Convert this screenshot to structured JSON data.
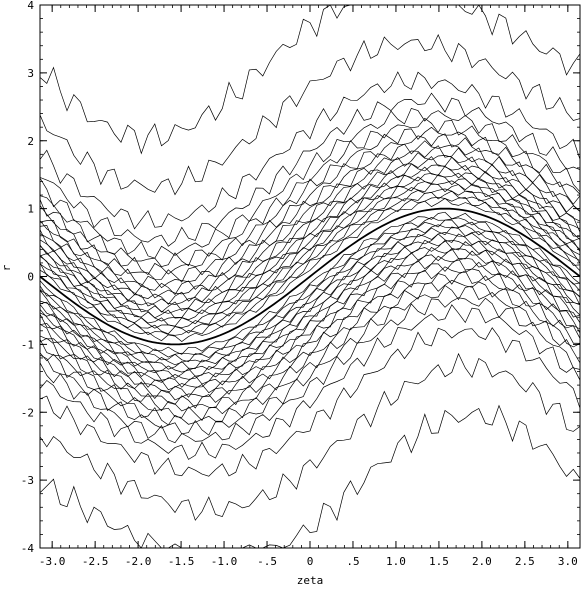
{
  "chart_data": {
    "type": "contour",
    "title": "",
    "xlabel": "zeta",
    "ylabel": "r",
    "xlim": [
      -3.14159,
      3.14159
    ],
    "ylim": [
      -4,
      4
    ],
    "x_ticks": [
      {
        "value": -3.0,
        "label": "-3.0"
      },
      {
        "value": -2.5,
        "label": "-2.5"
      },
      {
        "value": -2.0,
        "label": "-2.0"
      },
      {
        "value": -1.5,
        "label": "-1.5"
      },
      {
        "value": -1.0,
        "label": "-1.0"
      },
      {
        "value": -0.5,
        "label": "-.5"
      },
      {
        "value": 0,
        "label": "0"
      },
      {
        "value": 0.5,
        "label": ".5"
      },
      {
        "value": 1.0,
        "label": "1.0"
      },
      {
        "value": 1.5,
        "label": "1.5"
      },
      {
        "value": 2.0,
        "label": "2.0"
      },
      {
        "value": 2.5,
        "label": "2.5"
      },
      {
        "value": 3.0,
        "label": "3.0"
      }
    ],
    "y_ticks": [
      {
        "value": -4,
        "label": "-4"
      },
      {
        "value": -3,
        "label": "-3"
      },
      {
        "value": -2,
        "label": "-2"
      },
      {
        "value": -1,
        "label": "-1"
      },
      {
        "value": 0,
        "label": "0"
      },
      {
        "value": 1,
        "label": "1"
      },
      {
        "value": 2,
        "label": "2"
      },
      {
        "value": 3,
        "label": "3"
      },
      {
        "value": 4,
        "label": "4"
      }
    ],
    "overlay_curve": {
      "function": "sin",
      "x_range": [
        -3.14159,
        3.14159
      ],
      "amplitude": 1,
      "samples": 120
    },
    "contours": {
      "shape": "ridge following r = sin(zeta)",
      "half_widths": [
        0.1,
        0.16,
        0.22,
        0.28,
        0.34,
        0.4,
        0.46,
        0.52,
        0.58,
        0.65,
        0.72,
        0.8,
        0.88,
        0.97,
        1.07,
        1.18,
        1.3,
        1.45,
        1.65,
        1.95,
        2.5,
        3.3
      ],
      "samples": 80
    },
    "grid": false,
    "legend": "none"
  }
}
